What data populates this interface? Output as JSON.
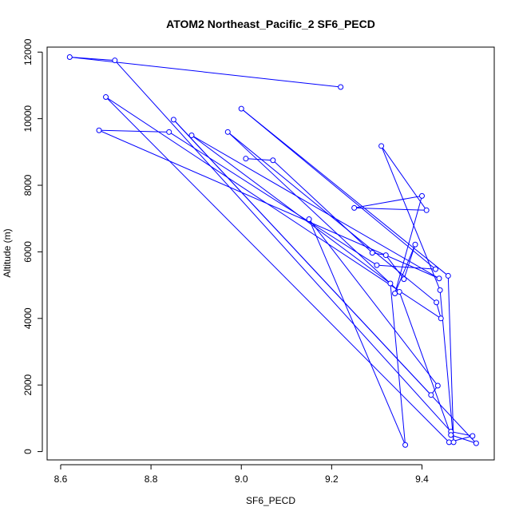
{
  "chart_data": {
    "type": "line",
    "title": "ATOM2 Northeast_Pacific_2 SF6_PECD",
    "xlabel": "SF6_PECD",
    "ylabel": "Altitude (m)",
    "xlim": [
      8.57,
      9.56
    ],
    "ylim": [
      -250,
      12150
    ],
    "x_ticks": [
      8.6,
      8.8,
      9.0,
      9.2,
      9.4
    ],
    "x_tick_labels": [
      "8.6",
      "8.8",
      "9.0",
      "9.2",
      "9.4"
    ],
    "y_ticks": [
      0,
      2000,
      4000,
      6000,
      8000,
      10000,
      12000
    ],
    "y_tick_labels": [
      "0",
      "2000",
      "4000",
      "6000",
      "8000",
      "10000",
      "12000"
    ],
    "grid": false,
    "legend": "none",
    "series_color": "#0000ff",
    "markers": "open-circle",
    "series": [
      {
        "x": [
          9.22,
          8.62,
          8.72,
          9.464,
          9.512,
          9.46,
          8.7,
          9.442,
          9.432,
          8.97,
          9.35,
          9.464,
          9.52,
          8.85,
          9.42,
          9.435,
          9.15,
          9.363,
          9.33,
          8.89,
          9.438,
          8.685,
          8.84,
          9.3,
          9.43,
          9.0,
          9.458,
          9.47,
          9.44,
          9.31,
          9.41,
          9.25,
          9.4,
          9.34,
          9.385,
          9.36,
          9.32,
          9.29,
          9.07,
          9.01
        ],
        "y": [
          10950,
          11850,
          11750,
          600,
          470,
          280,
          10650,
          4000,
          4480,
          9600,
          4800,
          500,
          250,
          9970,
          1700,
          1980,
          6980,
          200,
          5050,
          9500,
          5200,
          9650,
          9600,
          5600,
          5480,
          10300,
          5280,
          280,
          4850,
          9180,
          7250,
          7320,
          7680,
          4750,
          6220,
          5180,
          5900,
          5970,
          8750,
          8800
        ]
      }
    ]
  }
}
